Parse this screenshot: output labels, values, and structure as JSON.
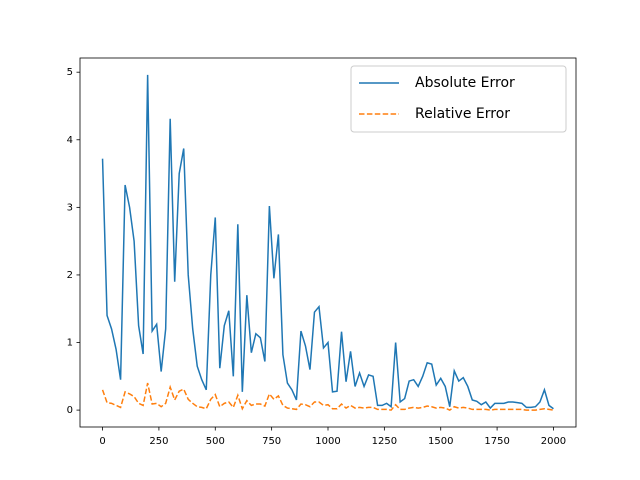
{
  "chart_data": {
    "type": "line",
    "x": [
      0,
      20,
      40,
      60,
      80,
      100,
      120,
      140,
      160,
      180,
      200,
      220,
      240,
      260,
      280,
      300,
      320,
      340,
      360,
      380,
      400,
      420,
      440,
      460,
      480,
      500,
      520,
      540,
      560,
      580,
      600,
      620,
      640,
      660,
      680,
      700,
      720,
      740,
      760,
      780,
      800,
      820,
      840,
      860,
      880,
      900,
      920,
      940,
      960,
      980,
      1000,
      1020,
      1040,
      1060,
      1080,
      1100,
      1120,
      1140,
      1160,
      1180,
      1200,
      1220,
      1240,
      1260,
      1280,
      1300,
      1320,
      1340,
      1360,
      1380,
      1400,
      1420,
      1440,
      1460,
      1480,
      1500,
      1520,
      1540,
      1560,
      1580,
      1600,
      1620,
      1640,
      1660,
      1680,
      1700,
      1720,
      1740,
      1760,
      1780,
      1800,
      1820,
      1840,
      1860,
      1880,
      1900,
      1920,
      1940,
      1960,
      1980,
      2000
    ],
    "series": [
      {
        "name": "Absolute Error",
        "color": "#1f77b4",
        "dash": false,
        "values": [
          3.72,
          1.4,
          1.2,
          0.9,
          0.45,
          3.33,
          3.0,
          2.5,
          1.25,
          0.83,
          4.96,
          1.17,
          1.27,
          0.57,
          1.2,
          4.31,
          1.9,
          3.5,
          3.87,
          2.0,
          1.2,
          0.65,
          0.45,
          0.3,
          2.0,
          2.85,
          0.62,
          1.25,
          1.47,
          0.5,
          2.75,
          0.27,
          1.7,
          0.85,
          1.13,
          1.07,
          0.72,
          3.02,
          1.95,
          2.6,
          0.82,
          0.4,
          0.3,
          0.15,
          1.17,
          0.95,
          0.6,
          1.45,
          1.53,
          0.92,
          1.0,
          0.27,
          0.28,
          1.16,
          0.42,
          0.87,
          0.35,
          0.55,
          0.35,
          0.52,
          0.5,
          0.07,
          0.07,
          0.1,
          0.05,
          1.0,
          0.12,
          0.17,
          0.43,
          0.45,
          0.35,
          0.5,
          0.7,
          0.68,
          0.37,
          0.47,
          0.35,
          0.05,
          0.58,
          0.43,
          0.48,
          0.35,
          0.15,
          0.13,
          0.08,
          0.12,
          0.03,
          0.1,
          0.1,
          0.1,
          0.12,
          0.12,
          0.11,
          0.1,
          0.04,
          0.04,
          0.05,
          0.12,
          0.3,
          0.07,
          0.02
        ]
      },
      {
        "name": "Relative Error",
        "color": "#ff7f0e",
        "dash": true,
        "values": [
          0.3,
          0.11,
          0.1,
          0.07,
          0.04,
          0.27,
          0.24,
          0.2,
          0.1,
          0.07,
          0.4,
          0.09,
          0.1,
          0.05,
          0.1,
          0.34,
          0.15,
          0.28,
          0.31,
          0.16,
          0.1,
          0.05,
          0.04,
          0.02,
          0.16,
          0.23,
          0.05,
          0.1,
          0.12,
          0.04,
          0.22,
          0.02,
          0.14,
          0.07,
          0.09,
          0.09,
          0.06,
          0.24,
          0.16,
          0.21,
          0.07,
          0.03,
          0.02,
          0.01,
          0.09,
          0.08,
          0.05,
          0.12,
          0.12,
          0.07,
          0.08,
          0.02,
          0.02,
          0.09,
          0.03,
          0.07,
          0.03,
          0.04,
          0.03,
          0.04,
          0.04,
          0.01,
          0.01,
          0.01,
          0,
          0.08,
          0.01,
          0.01,
          0.03,
          0.04,
          0.03,
          0.04,
          0.06,
          0.05,
          0.03,
          0.04,
          0.03,
          0,
          0.05,
          0.03,
          0.04,
          0.03,
          0.01,
          0.01,
          0.01,
          0.01,
          0,
          0.01,
          0.01,
          0.01,
          0.01,
          0.01,
          0.01,
          0.01,
          0,
          0,
          0,
          0.01,
          0.02,
          0.01,
          0
        ]
      }
    ],
    "xlim": [
      -100,
      2100
    ],
    "ylim": [
      -0.25,
      5.21
    ],
    "xticks": [
      0,
      250,
      500,
      750,
      1000,
      1250,
      1500,
      1750,
      2000
    ],
    "yticks": [
      0,
      1,
      2,
      3,
      4,
      5
    ],
    "legend": "upper right"
  }
}
